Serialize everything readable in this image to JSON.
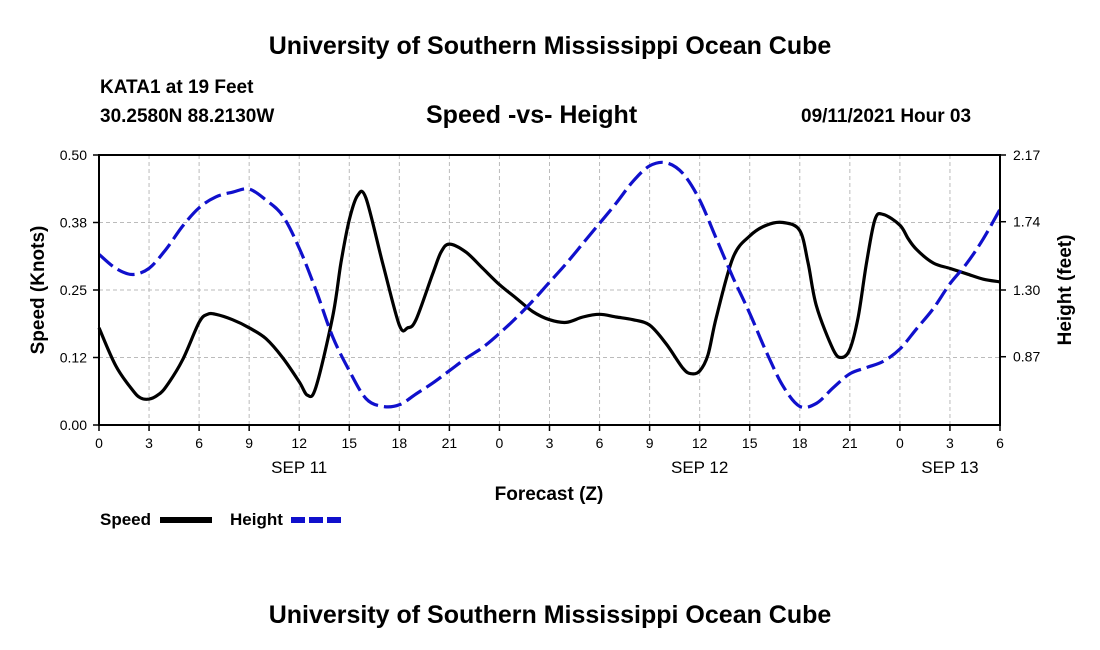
{
  "header": {
    "top_title": "University of Southern Mississippi Ocean Cube",
    "station": "KATA1 at 19 Feet",
    "coords": "30.2580N  88.2130W",
    "chart_title": "Speed -vs- Height",
    "date": "09/11/2021 Hour 03"
  },
  "footer": {
    "bottom_title": "University of Southern Mississippi Ocean Cube"
  },
  "colors": {
    "speed": "#000000",
    "height": "#1010cc",
    "grid": "#bbbbbb"
  },
  "chart_data": {
    "type": "line",
    "title": "Speed -vs- Height",
    "xlabel": "Forecast (Z)",
    "ylabel": "Speed (Knots)",
    "ylabel_right": "Height (feet)",
    "xlim": [
      0,
      54
    ],
    "ylim": [
      0,
      0.5
    ],
    "ylim_right": [
      0.43,
      2.17
    ],
    "grid": true,
    "x_ticks": [
      0,
      3,
      6,
      9,
      12,
      15,
      18,
      21,
      24,
      27,
      30,
      33,
      36,
      39,
      42,
      45,
      48,
      51,
      54
    ],
    "x_tick_labels": [
      "0",
      "3",
      "6",
      "9",
      "12",
      "15",
      "18",
      "21",
      "0",
      "3",
      "6",
      "9",
      "12",
      "15",
      "18",
      "21",
      "0",
      "3",
      "6"
    ],
    "date_labels": [
      {
        "x": 12,
        "label": "SEP 11"
      },
      {
        "x": 36,
        "label": "SEP 12"
      },
      {
        "x": 51,
        "label": "SEP 13"
      }
    ],
    "y_ticks_left": [
      "0.00",
      "0.12",
      "0.25",
      "0.38",
      "0.50"
    ],
    "y_ticks_left_values": [
      0,
      0.125,
      0.25,
      0.375,
      0.5
    ],
    "y_ticks_right": [
      "0.87",
      "1.30",
      "1.74",
      "2.17"
    ],
    "y_ticks_right_values": [
      0.87,
      1.3,
      1.74,
      2.17
    ],
    "legend": [
      {
        "name": "Speed",
        "style": "solid"
      },
      {
        "name": "Height",
        "style": "dashed"
      }
    ],
    "series": [
      {
        "name": "Speed",
        "axis": "left",
        "x": [
          0,
          1,
          2,
          2.5,
          3,
          3.5,
          4,
          5,
          6,
          6.5,
          7,
          8,
          9,
          10,
          11,
          12,
          12.5,
          13,
          14,
          14.5,
          15,
          15.5,
          16,
          17,
          18,
          18.5,
          19,
          20,
          20.5,
          21,
          22,
          23,
          24,
          25,
          26,
          27,
          28,
          29,
          30,
          31,
          32,
          33,
          34,
          35,
          35.5,
          36,
          36.5,
          37,
          38,
          39,
          40,
          41,
          42,
          42.5,
          43,
          44,
          44.5,
          45,
          45.5,
          46,
          46.5,
          47,
          48,
          48.5,
          49,
          50,
          51,
          52,
          53,
          54
        ],
        "values": [
          0.18,
          0.11,
          0.065,
          0.05,
          0.048,
          0.055,
          0.07,
          0.12,
          0.19,
          0.205,
          0.205,
          0.195,
          0.18,
          0.16,
          0.125,
          0.08,
          0.055,
          0.07,
          0.2,
          0.3,
          0.38,
          0.425,
          0.42,
          0.3,
          0.185,
          0.18,
          0.195,
          0.28,
          0.32,
          0.335,
          0.32,
          0.29,
          0.26,
          0.235,
          0.21,
          0.195,
          0.19,
          0.2,
          0.205,
          0.2,
          0.195,
          0.185,
          0.15,
          0.105,
          0.095,
          0.1,
          0.13,
          0.2,
          0.31,
          0.35,
          0.37,
          0.375,
          0.36,
          0.3,
          0.22,
          0.14,
          0.125,
          0.14,
          0.2,
          0.3,
          0.38,
          0.39,
          0.37,
          0.345,
          0.325,
          0.3,
          0.29,
          0.28,
          0.27,
          0.265
        ]
      },
      {
        "name": "Height",
        "axis": "right",
        "x": [
          0,
          1,
          2,
          3,
          4,
          5,
          6,
          7,
          8,
          9,
          10,
          11,
          12,
          13,
          14,
          15,
          16,
          17,
          18,
          19,
          20,
          21,
          22,
          23,
          24,
          25,
          26,
          27,
          28,
          29,
          30,
          31,
          32,
          33,
          34,
          35,
          36,
          37,
          38,
          39,
          40,
          41,
          42,
          43,
          44,
          45,
          46,
          47,
          48,
          49,
          50,
          51,
          52,
          53,
          54
        ],
        "values": [
          1.53,
          1.44,
          1.4,
          1.44,
          1.56,
          1.71,
          1.83,
          1.9,
          1.93,
          1.95,
          1.88,
          1.78,
          1.57,
          1.3,
          1.0,
          0.78,
          0.6,
          0.55,
          0.56,
          0.63,
          0.7,
          0.78,
          0.86,
          0.93,
          1.02,
          1.12,
          1.23,
          1.35,
          1.47,
          1.6,
          1.73,
          1.86,
          2.0,
          2.1,
          2.12,
          2.05,
          1.88,
          1.63,
          1.38,
          1.15,
          0.9,
          0.68,
          0.55,
          0.57,
          0.67,
          0.76,
          0.8,
          0.84,
          0.92,
          1.05,
          1.18,
          1.34,
          1.47,
          1.63,
          1.82
        ]
      }
    ]
  }
}
